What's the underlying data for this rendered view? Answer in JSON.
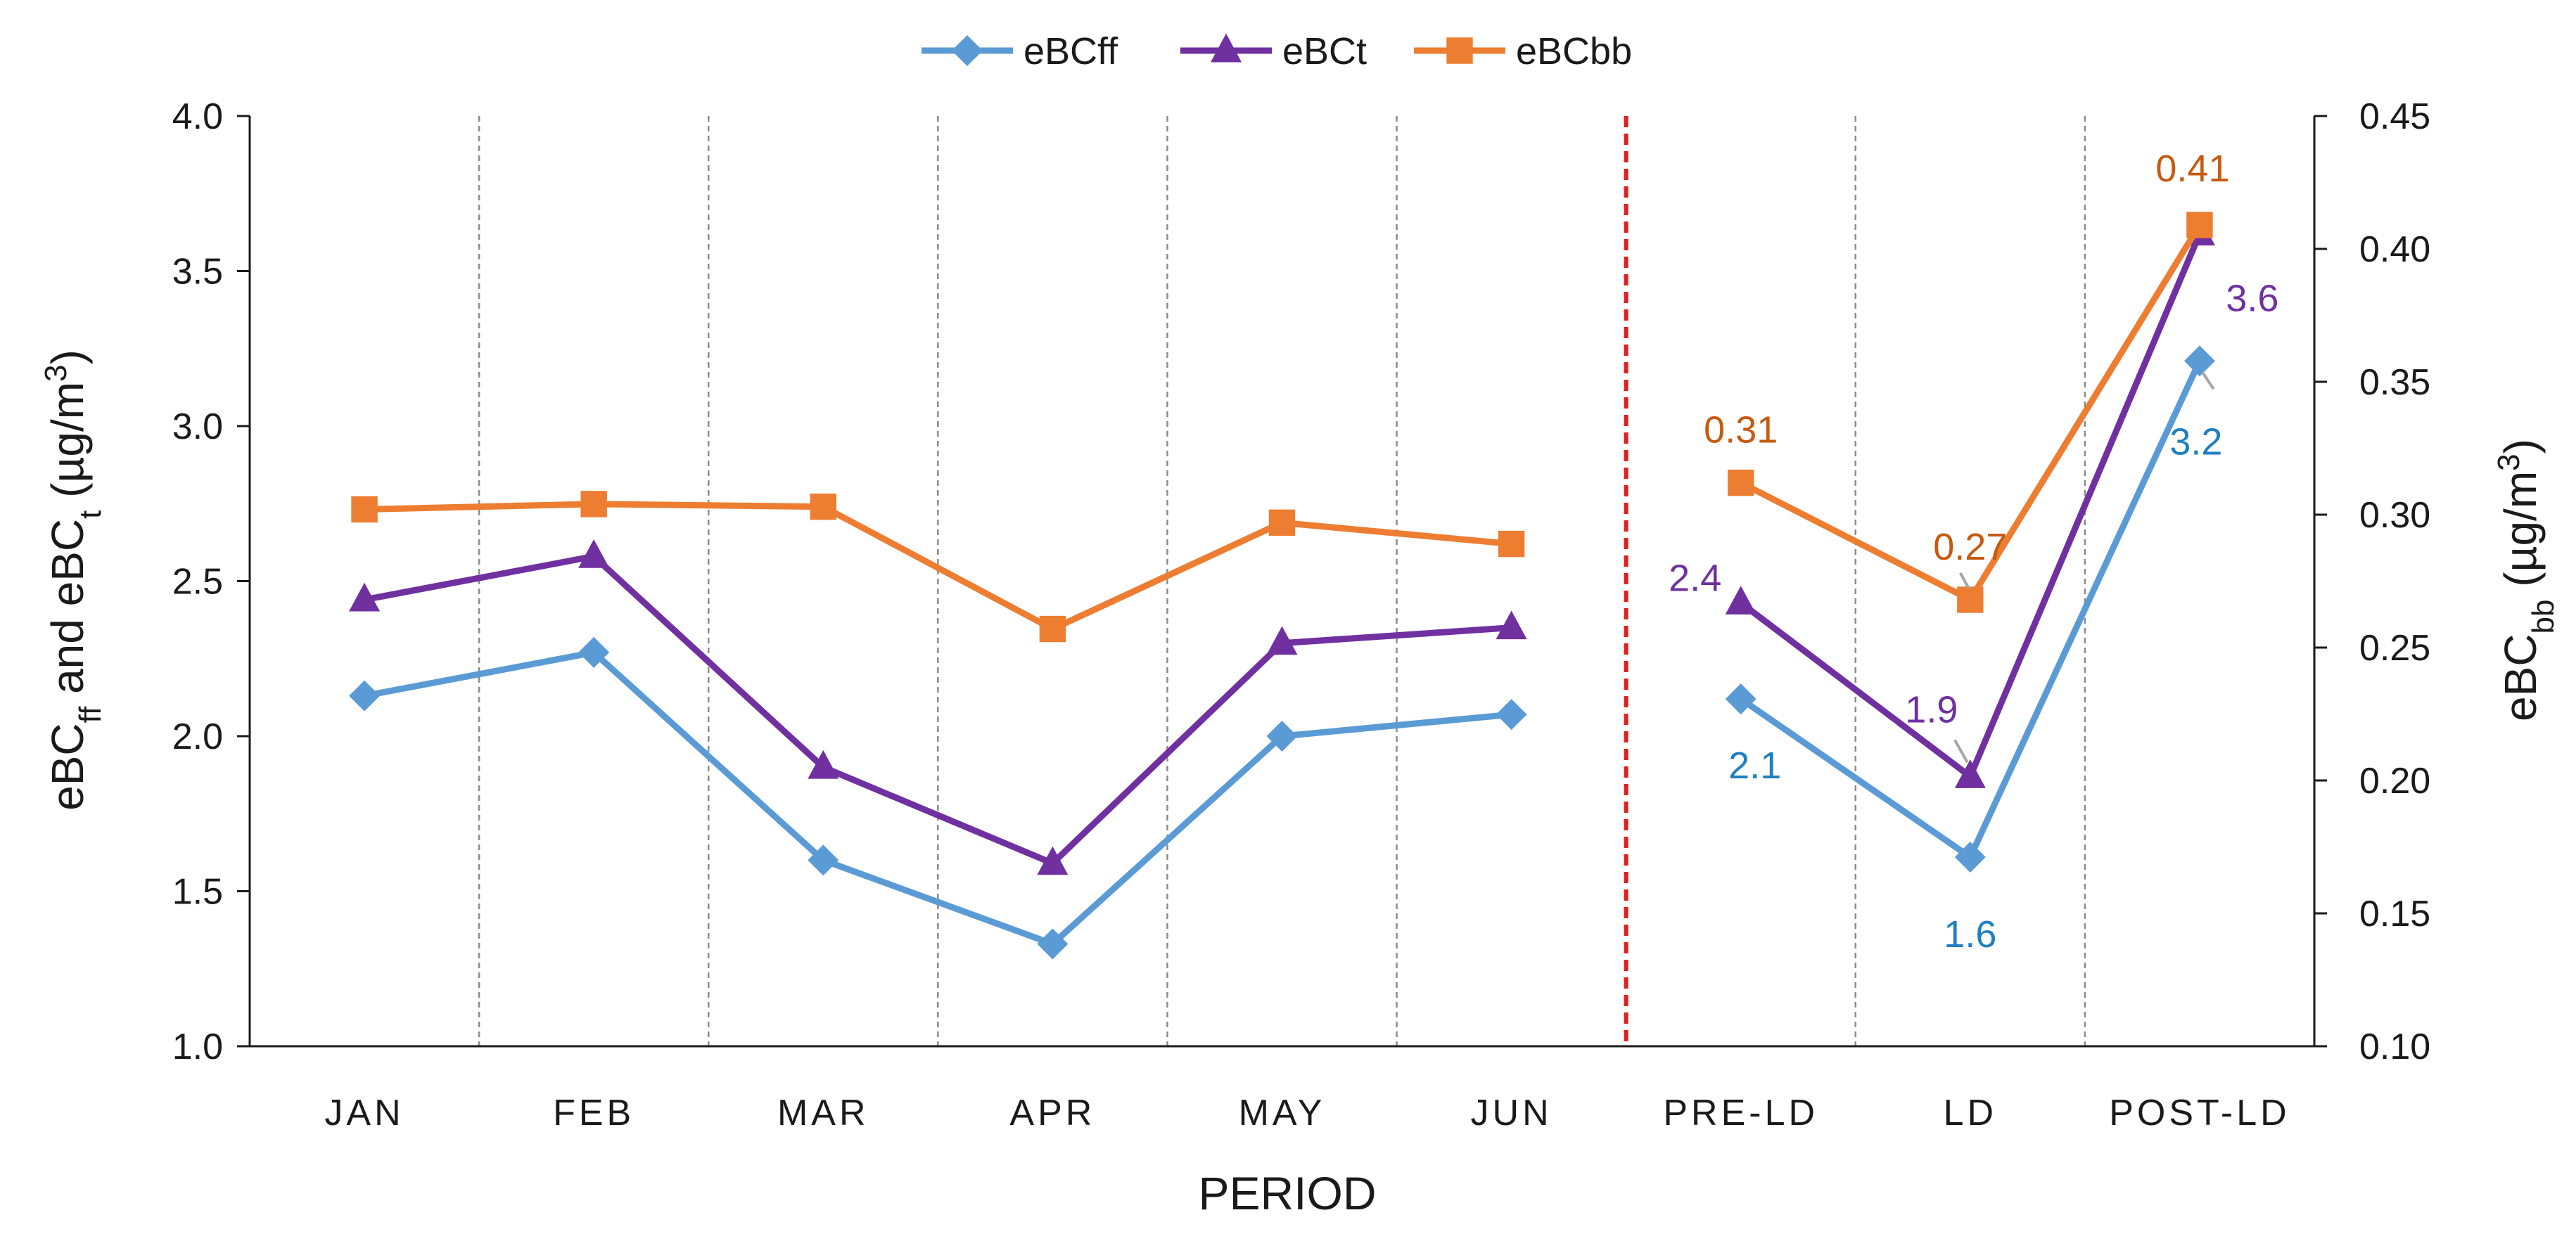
{
  "chart_data": {
    "type": "line",
    "xlabel": "PERIOD",
    "ylabel_left": "eBCff and eBCt (µg/m³)",
    "ylabel_left_parts": {
      "a": "eBC",
      "a_sub": "ff",
      "mid": " and eBC",
      "b_sub": "t",
      "unit": " (µg/m",
      "sup": "3",
      "close": ")"
    },
    "ylabel_right": "eBCbb (µg/m³)",
    "ylabel_right_parts": {
      "a": "eBC",
      "a_sub": "bb",
      "unit": " (µg/m",
      "sup": "3",
      "close": ")"
    },
    "categories": [
      "JAN",
      "FEB",
      "MAR",
      "APR",
      "MAY",
      "JUN",
      "PRE-LD",
      "LD",
      "POST-LD"
    ],
    "y_left": {
      "min": 1.0,
      "max": 4.0,
      "ticks": [
        "1.0",
        "1.5",
        "2.0",
        "2.5",
        "3.0",
        "3.5",
        "4.0"
      ]
    },
    "y_right": {
      "min": 0.1,
      "max": 0.45,
      "ticks": [
        "0.10",
        "0.15",
        "0.20",
        "0.25",
        "0.30",
        "0.35",
        "0.40",
        "0.45"
      ]
    },
    "lockdown_marker_after_category": "JUN",
    "series": [
      {
        "name": "eBCff",
        "axis": "left",
        "color": "#5b9bd5",
        "label_color": "#1f7fc1",
        "marker": "diamond",
        "values": [
          2.13,
          2.27,
          1.6,
          1.33,
          2.0,
          2.07,
          2.12,
          1.61,
          3.21
        ]
      },
      {
        "name": "eBCt",
        "axis": "left",
        "color": "#7030a0",
        "label_color": "#7030a0",
        "marker": "triangle",
        "values": [
          2.44,
          2.58,
          1.9,
          1.59,
          2.3,
          2.35,
          2.43,
          1.87,
          3.62
        ]
      },
      {
        "name": "eBCbb",
        "axis": "right",
        "color": "#ed7d31",
        "label_color": "#c55a11",
        "marker": "square",
        "values": [
          0.302,
          0.304,
          0.303,
          0.257,
          0.297,
          0.289,
          0.312,
          0.268,
          0.409
        ]
      }
    ],
    "data_labels": [
      {
        "series": "eBCbb",
        "category": "PRE-LD",
        "text": "0.31"
      },
      {
        "series": "eBCbb",
        "category": "LD",
        "text": "0.27"
      },
      {
        "series": "eBCbb",
        "category": "POST-LD",
        "text": "0.41"
      },
      {
        "series": "eBCt",
        "category": "PRE-LD",
        "text": "2.4"
      },
      {
        "series": "eBCt",
        "category": "LD",
        "text": "1.9"
      },
      {
        "series": "eBCt",
        "category": "POST-LD",
        "text": "3.6"
      },
      {
        "series": "eBCff",
        "category": "PRE-LD",
        "text": "2.1"
      },
      {
        "series": "eBCff",
        "category": "LD",
        "text": "1.6"
      },
      {
        "series": "eBCff",
        "category": "POST-LD",
        "text": "3.2"
      }
    ],
    "colors": {
      "grid_divider": "#8c8c8c",
      "lockdown_divider": "#e02020",
      "axis": "#1a1a1a"
    }
  }
}
